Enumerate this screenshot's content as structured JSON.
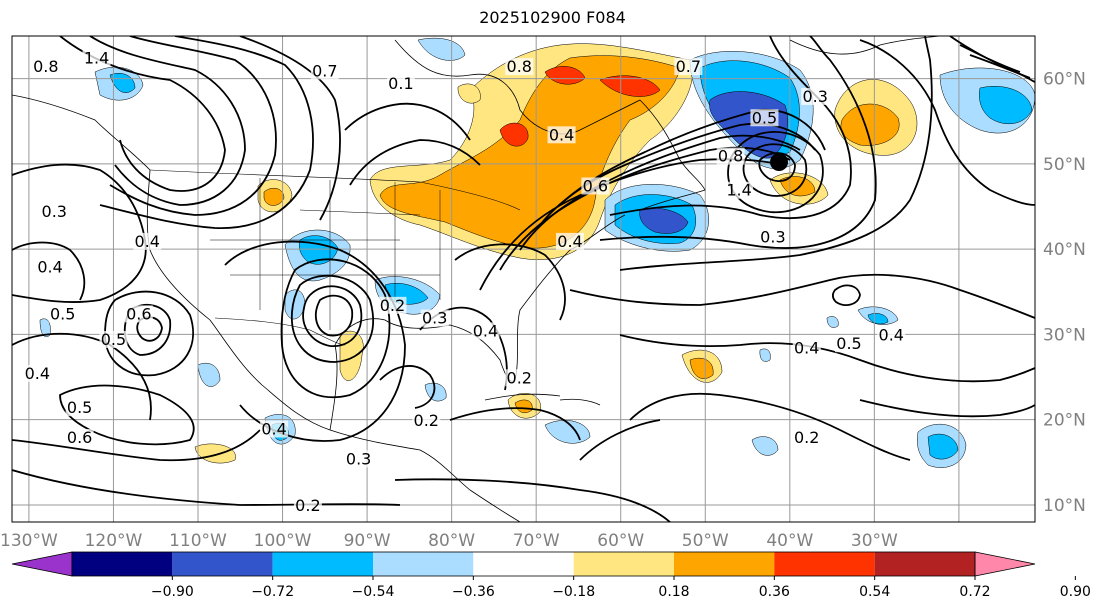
{
  "title": "2025102900 F084",
  "map": {
    "lat_labels": [
      "60°N",
      "50°N",
      "40°N",
      "30°N",
      "20°N",
      "10°N"
    ],
    "lon_labels": [
      "130°W",
      "120°W",
      "110°W",
      "100°W",
      "90°W",
      "80°W",
      "70°W",
      "60°W",
      "50°W",
      "40°W",
      "30°W"
    ],
    "lon_range": [
      -132,
      -11
    ],
    "lat_range": [
      8,
      65
    ],
    "gridlines": true
  },
  "colorbar": {
    "ticks": [
      "−0.90",
      "−0.72",
      "−0.54",
      "−0.36",
      "−0.18",
      "0.18",
      "0.36",
      "0.54",
      "0.72",
      "0.90"
    ],
    "colors": [
      "#9933cc",
      "#000080",
      "#3355cc",
      "#00bbff",
      "#aaddff",
      "#ffffff",
      "#ffe680",
      "#ffa500",
      "#ff3300",
      "#b22222",
      "#ff88aa"
    ]
  },
  "contour_labels": [
    {
      "text": "1.4",
      "lon": -122,
      "lat": 62
    },
    {
      "text": "0.8",
      "lon": -128,
      "lat": 61
    },
    {
      "text": "0.7",
      "lon": -95,
      "lat": 60.5
    },
    {
      "text": "0.1",
      "lon": -86,
      "lat": 59
    },
    {
      "text": "0.8",
      "lon": -72,
      "lat": 61
    },
    {
      "text": "0.7",
      "lon": -52,
      "lat": 61
    },
    {
      "text": "0.5",
      "lon": -43,
      "lat": 55
    },
    {
      "text": "0.3",
      "lon": -37,
      "lat": 57.5
    },
    {
      "text": "0.3",
      "lon": -127,
      "lat": 44
    },
    {
      "text": "0.4",
      "lon": -116,
      "lat": 40.5
    },
    {
      "text": "0.4",
      "lon": -127.5,
      "lat": 37.5
    },
    {
      "text": "0.5",
      "lon": -126,
      "lat": 32
    },
    {
      "text": "0.6",
      "lon": -117,
      "lat": 32
    },
    {
      "text": "0.5",
      "lon": -120,
      "lat": 29
    },
    {
      "text": "0.4",
      "lon": -129,
      "lat": 25
    },
    {
      "text": "0.5",
      "lon": -124,
      "lat": 21
    },
    {
      "text": "0.6",
      "lon": -124,
      "lat": 17.5
    },
    {
      "text": "0.4",
      "lon": -101,
      "lat": 18.5
    },
    {
      "text": "0.2",
      "lon": -87,
      "lat": 33
    },
    {
      "text": "0.3",
      "lon": -82,
      "lat": 31.5
    },
    {
      "text": "0.4",
      "lon": -76,
      "lat": 30
    },
    {
      "text": "0.2",
      "lon": -83,
      "lat": 19.5
    },
    {
      "text": "0.2",
      "lon": -72,
      "lat": 24.5
    },
    {
      "text": "0.3",
      "lon": -91,
      "lat": 15
    },
    {
      "text": "0.2",
      "lon": -97,
      "lat": 9.5
    },
    {
      "text": "0.4",
      "lon": -66,
      "lat": 40.5
    },
    {
      "text": "0.6",
      "lon": -63,
      "lat": 47
    },
    {
      "text": "0.4",
      "lon": -67,
      "lat": 53
    },
    {
      "text": "0.8",
      "lon": -47,
      "lat": 50.5
    },
    {
      "text": "1.4",
      "lon": -46,
      "lat": 46.5
    },
    {
      "text": "0.3",
      "lon": -42,
      "lat": 41
    },
    {
      "text": "0.4",
      "lon": -38,
      "lat": 28
    },
    {
      "text": "0.5",
      "lon": -33,
      "lat": 28.5
    },
    {
      "text": "0.4",
      "lon": -28,
      "lat": 29.5
    },
    {
      "text": "0.2",
      "lon": -38,
      "lat": 17.5
    }
  ]
}
